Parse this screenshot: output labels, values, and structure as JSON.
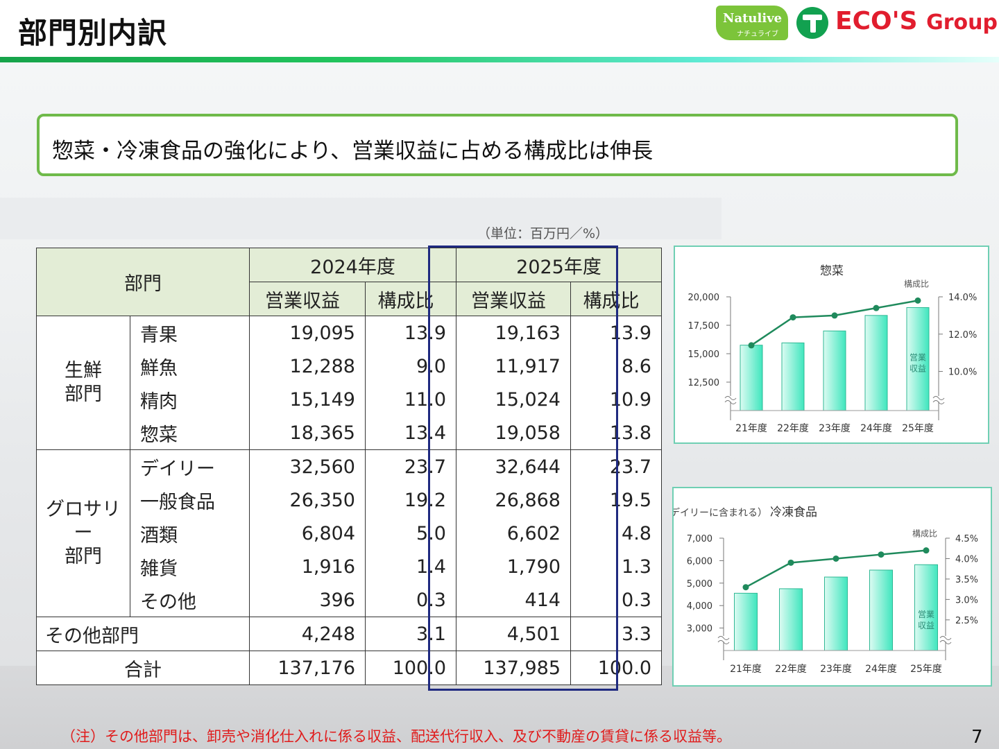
{
  "header": {
    "title": "部門別内訳",
    "page_number": "7"
  },
  "logos": {
    "natulive": "Natulive",
    "natulive_kana": "ナチュライブ",
    "ecos_main": "ECO'S",
    "ecos_group": "Group"
  },
  "headline": "惣菜・冷凍食品の強化により、営業収益に占める構成比は伸長",
  "unit": "（単位：百万円／%）",
  "table": {
    "dept_header": "部門",
    "year_2024": "2024年度",
    "year_2025": "2025年度",
    "col_revenue": "営業収益",
    "col_ratio": "構成比",
    "groups": [
      {
        "name": "生鮮\n部門",
        "rows": [
          {
            "label": "青果",
            "v24": "19,095",
            "r24": "13.9",
            "v25": "19,163",
            "r25": "13.9"
          },
          {
            "label": "鮮魚",
            "v24": "12,288",
            "r24": "9.0",
            "v25": "11,917",
            "r25": "8.6"
          },
          {
            "label": "精肉",
            "v24": "15,149",
            "r24": "11.0",
            "v25": "15,024",
            "r25": "10.9"
          },
          {
            "label": "惣菜",
            "v24": "18,365",
            "r24": "13.4",
            "v25": "19,058",
            "r25": "13.8"
          }
        ]
      },
      {
        "name": "グロサリー\n部門",
        "rows": [
          {
            "label": "デイリー",
            "v24": "32,560",
            "r24": "23.7",
            "v25": "32,644",
            "r25": "23.7"
          },
          {
            "label": "一般食品",
            "v24": "26,350",
            "r24": "19.2",
            "v25": "26,868",
            "r25": "19.5"
          },
          {
            "label": "酒類",
            "v24": "6,804",
            "r24": "5.0",
            "v25": "6,602",
            "r25": "4.8"
          },
          {
            "label": "雑貨",
            "v24": "1,916",
            "r24": "1.4",
            "v25": "1,790",
            "r25": "1.3"
          },
          {
            "label": "その他",
            "v24": "396",
            "r24": "0.3",
            "v25": "414",
            "r25": "0.3"
          }
        ]
      }
    ],
    "other": {
      "label": "その他部門",
      "v24": "4,248",
      "r24": "3.1",
      "v25": "4,501",
      "r25": "3.3"
    },
    "total": {
      "label": "合計",
      "v24": "137,176",
      "r24": "100.0",
      "v25": "137,985",
      "r25": "100.0"
    }
  },
  "chart_data": [
    {
      "type": "bar",
      "title": "惣菜",
      "subtitle": "",
      "categories": [
        "21年度",
        "22年度",
        "23年度",
        "24年度",
        "25年度"
      ],
      "series": [
        {
          "name": "営業収益",
          "kind": "bar",
          "axis": "left",
          "values": [
            15750,
            15950,
            17000,
            18365,
            19058
          ]
        },
        {
          "name": "構成比",
          "kind": "line",
          "axis": "right",
          "values": [
            11.4,
            12.9,
            13.0,
            13.4,
            13.8
          ]
        }
      ],
      "y_left": {
        "ticks": [
          12500,
          15000,
          17500,
          20000
        ],
        "tick_labels": [
          "12,500",
          "15,000",
          "17,500",
          "20,000"
        ],
        "range": [
          10000,
          20000
        ]
      },
      "y_right": {
        "ticks": [
          10.0,
          12.0,
          14.0
        ],
        "tick_labels": [
          "10.0%",
          "12.0%",
          "14.0%"
        ],
        "range": [
          7.9,
          14.0
        ]
      },
      "axis_break": true,
      "grid": false,
      "colors": {
        "bar_light": "#dcfbf2",
        "bar_dark": "#40e6be",
        "line": "#1f8a5c"
      }
    },
    {
      "type": "bar",
      "title": "冷凍食品",
      "subtitle": "（デイリーに含まれる）",
      "categories": [
        "21年度",
        "22年度",
        "23年度",
        "24年度",
        "25年度"
      ],
      "series": [
        {
          "name": "営業収益",
          "kind": "bar",
          "axis": "left",
          "values": [
            4550,
            4750,
            5270,
            5580,
            5820
          ]
        },
        {
          "name": "構成比",
          "kind": "line",
          "axis": "right",
          "values": [
            3.3,
            3.9,
            4.0,
            4.1,
            4.2
          ]
        }
      ],
      "y_left": {
        "ticks": [
          3000,
          4000,
          5000,
          6000,
          7000
        ],
        "tick_labels": [
          "3,000",
          "4,000",
          "5,000",
          "6,000",
          "7,000"
        ],
        "range": [
          2000,
          7000
        ]
      },
      "y_right": {
        "ticks": [
          2.5,
          3.0,
          3.5,
          4.0,
          4.5
        ],
        "tick_labels": [
          "2.5%",
          "3.0%",
          "3.5%",
          "4.0%",
          "4.5%"
        ],
        "range": [
          1.75,
          4.5
        ]
      },
      "axis_break": true,
      "grid": false,
      "colors": {
        "bar_light": "#dcfbf2",
        "bar_dark": "#40e6be",
        "line": "#1f8a5c"
      }
    }
  ],
  "note": "（注）その他部門は、卸売や消化仕入れに係る収益、配送代行収入、及び不動産の賃貸に係る収益等。"
}
